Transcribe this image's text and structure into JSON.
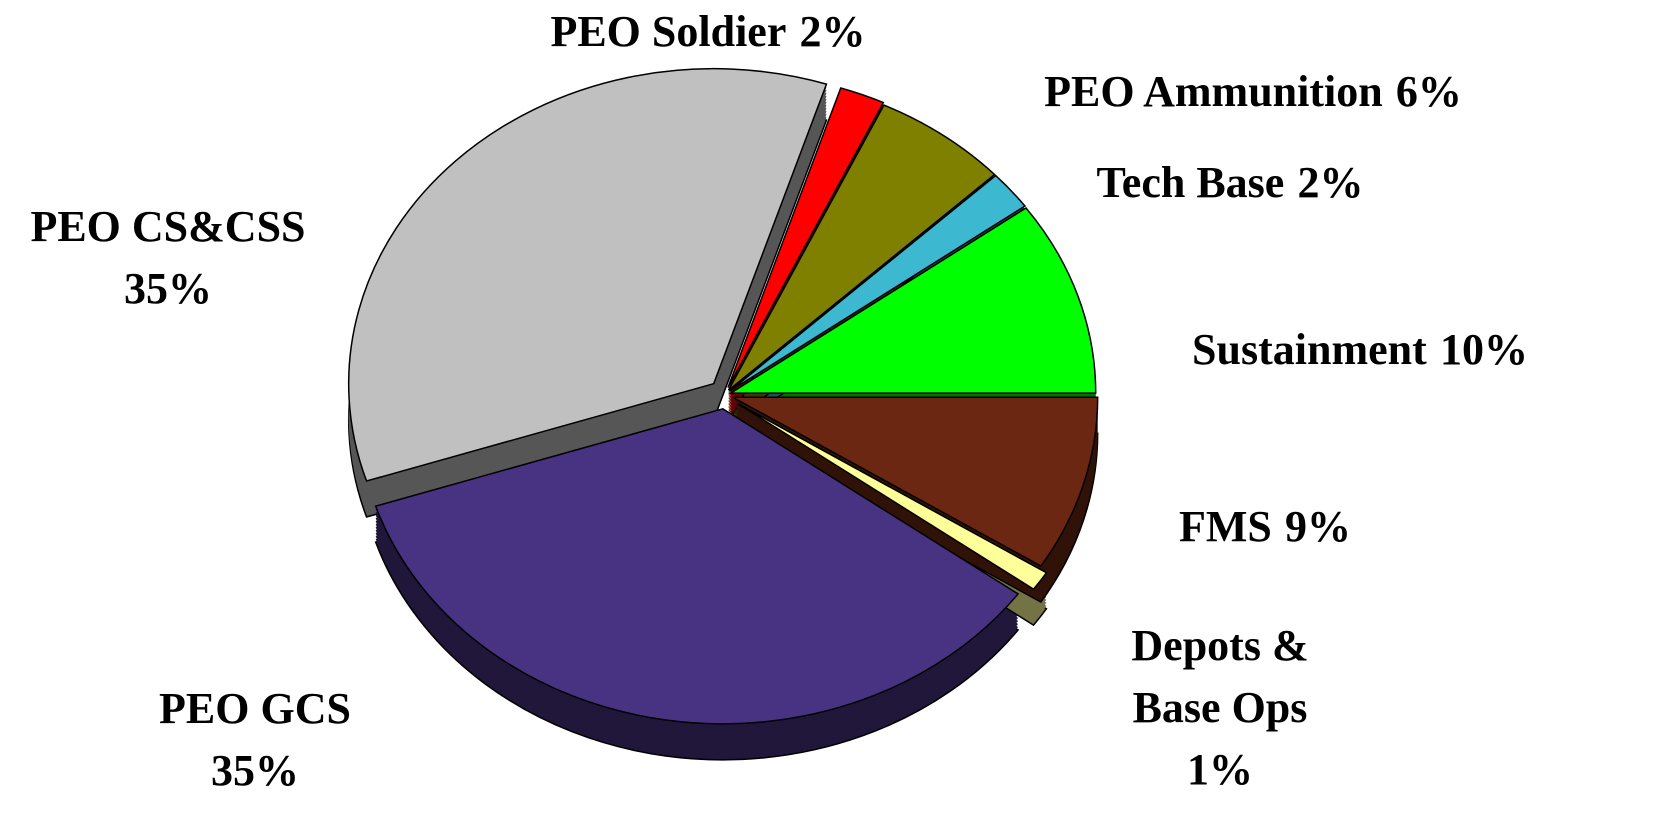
{
  "chart_data": {
    "type": "pie",
    "categories": [
      "Sustainment",
      "Tech Base",
      "PEO Ammunition",
      "PEO Soldier",
      "PEO CS&CSS",
      "PEO GCS",
      "Depots & Base Ops",
      "FMS"
    ],
    "values": [
      10,
      2,
      6,
      2,
      35,
      35,
      1,
      9
    ],
    "value_labels": [
      "10%",
      "2%",
      "6%",
      "2%",
      "35%",
      "35%",
      "1%",
      "9%"
    ],
    "colors": [
      "#00ff00",
      "#3cb8d0",
      "#808000",
      "#ff0000",
      "#c0c0c0",
      "#483382",
      "#ffff99",
      "#6b2712"
    ]
  }
}
